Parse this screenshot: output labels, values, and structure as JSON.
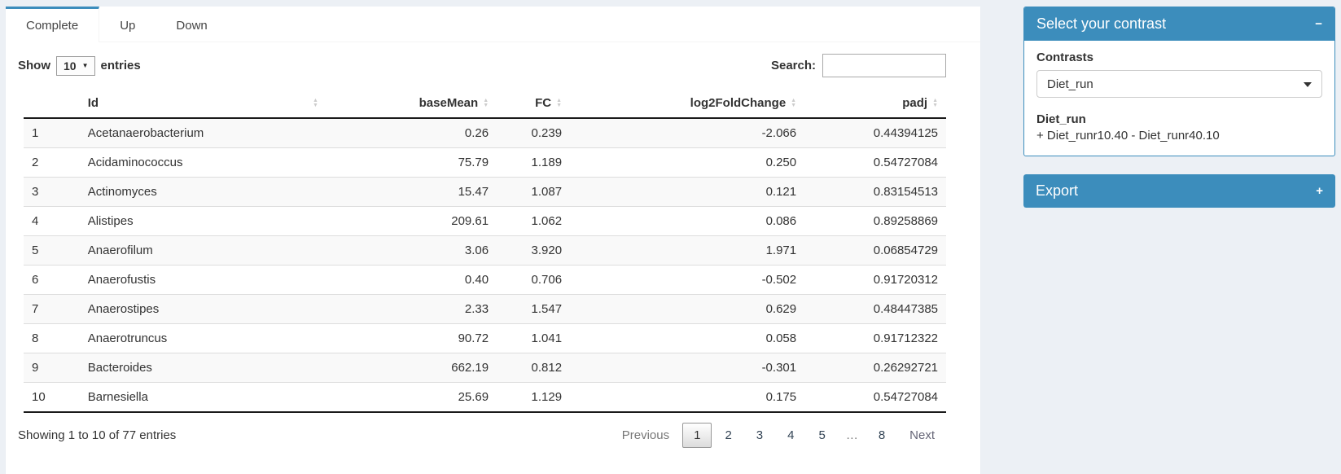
{
  "colors": {
    "primary": "#3c8dbc",
    "page_bg": "#ecf0f5",
    "stripe": "#f9f9f9"
  },
  "tabs": [
    {
      "label": "Complete",
      "active": true
    },
    {
      "label": "Up",
      "active": false
    },
    {
      "label": "Down",
      "active": false
    }
  ],
  "table_controls": {
    "show_label": "Show",
    "page_length": "10",
    "entries_label": "entries",
    "search_label": "Search:",
    "search_value": ""
  },
  "table": {
    "columns": [
      "Id",
      "baseMean",
      "FC",
      "log2FoldChange",
      "padj"
    ],
    "rows": [
      {
        "n": "1",
        "id": "Acetanaerobacterium",
        "baseMean": "0.26",
        "fc": "0.239",
        "log2fc": "-2.066",
        "padj": "0.44394125"
      },
      {
        "n": "2",
        "id": "Acidaminococcus",
        "baseMean": "75.79",
        "fc": "1.189",
        "log2fc": "0.250",
        "padj": "0.54727084"
      },
      {
        "n": "3",
        "id": "Actinomyces",
        "baseMean": "15.47",
        "fc": "1.087",
        "log2fc": "0.121",
        "padj": "0.83154513"
      },
      {
        "n": "4",
        "id": "Alistipes",
        "baseMean": "209.61",
        "fc": "1.062",
        "log2fc": "0.086",
        "padj": "0.89258869"
      },
      {
        "n": "5",
        "id": "Anaerofilum",
        "baseMean": "3.06",
        "fc": "3.920",
        "log2fc": "1.971",
        "padj": "0.06854729"
      },
      {
        "n": "6",
        "id": "Anaerofustis",
        "baseMean": "0.40",
        "fc": "0.706",
        "log2fc": "-0.502",
        "padj": "0.91720312"
      },
      {
        "n": "7",
        "id": "Anaerostipes",
        "baseMean": "2.33",
        "fc": "1.547",
        "log2fc": "0.629",
        "padj": "0.48447385"
      },
      {
        "n": "8",
        "id": "Anaerotruncus",
        "baseMean": "90.72",
        "fc": "1.041",
        "log2fc": "0.058",
        "padj": "0.91712322"
      },
      {
        "n": "9",
        "id": "Bacteroides",
        "baseMean": "662.19",
        "fc": "0.812",
        "log2fc": "-0.301",
        "padj": "0.26292721"
      },
      {
        "n": "10",
        "id": "Barnesiella",
        "baseMean": "25.69",
        "fc": "1.129",
        "log2fc": "0.175",
        "padj": "0.54727084"
      }
    ]
  },
  "footer": {
    "info": "Showing 1 to 10 of 77 entries",
    "pagination": [
      {
        "label": "Previous",
        "state": "prev disabled"
      },
      {
        "label": "1",
        "state": "active"
      },
      {
        "label": "2",
        "state": "normal"
      },
      {
        "label": "3",
        "state": "normal"
      },
      {
        "label": "4",
        "state": "normal"
      },
      {
        "label": "5",
        "state": "normal"
      },
      {
        "label": "…",
        "state": "ellipsis"
      },
      {
        "label": "8",
        "state": "normal"
      },
      {
        "label": "Next",
        "state": "next"
      }
    ]
  },
  "contrast_box": {
    "title": "Select your contrast",
    "collapse_icon": "−",
    "contrasts_label": "Contrasts",
    "selected_contrast": "Diet_run",
    "contrast_name": "Diet_run",
    "contrast_formula": "+ Diet_runr10.40 - Diet_runr40.10"
  },
  "export_box": {
    "title": "Export",
    "expand_icon": "+"
  }
}
